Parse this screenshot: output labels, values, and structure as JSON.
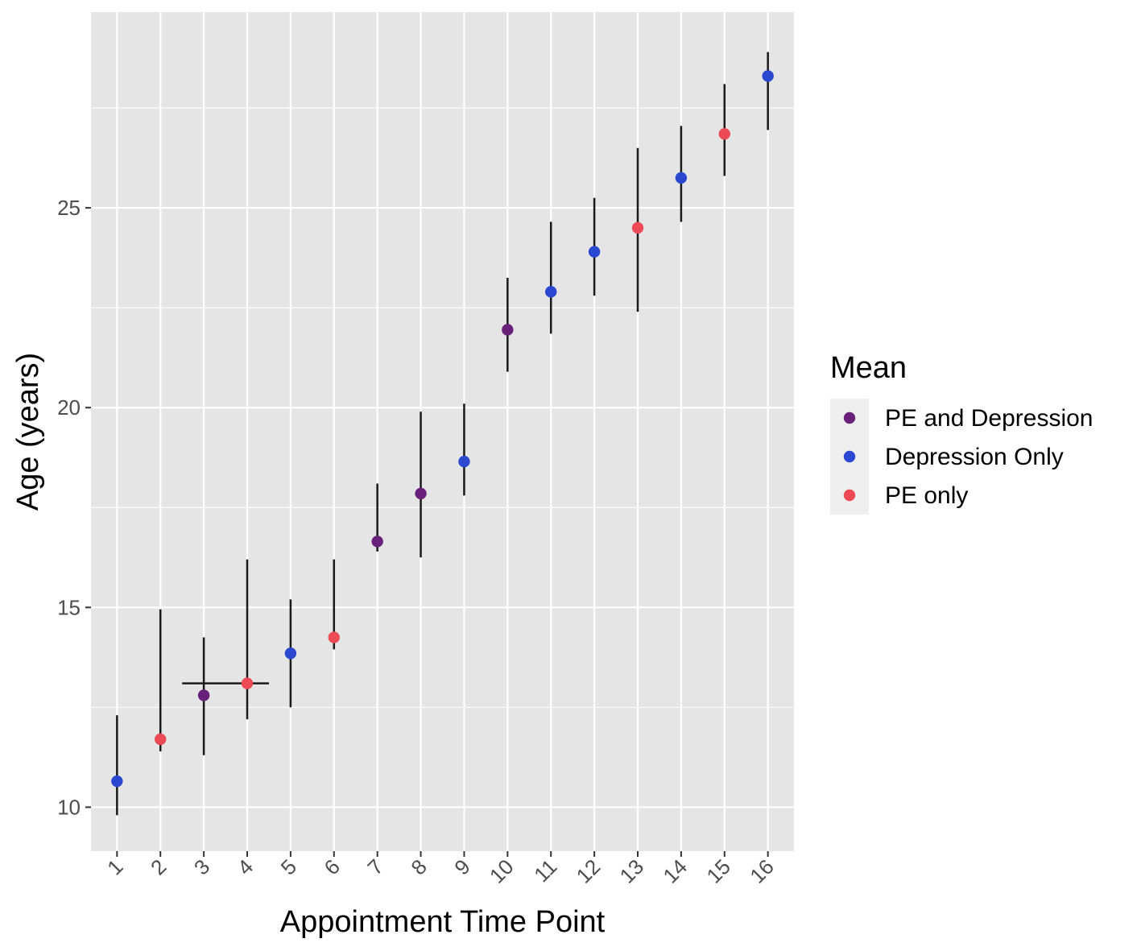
{
  "chart_data": {
    "type": "scatter",
    "title": "",
    "xlabel": "Appointment Time Point",
    "ylabel": "Age (years)",
    "categories": [
      "1",
      "2",
      "3",
      "4",
      "5",
      "6",
      "7",
      "8",
      "9",
      "10",
      "11",
      "12",
      "13",
      "14",
      "15",
      "16"
    ],
    "ylim": [
      8.9,
      29.9
    ],
    "yticks": [
      10,
      15,
      20,
      25
    ],
    "grid": true,
    "legend": {
      "title": "Mean",
      "position": "right",
      "entries": [
        {
          "label": "PE and Depression",
          "color": "#68207a"
        },
        {
          "label": "Depression Only",
          "color": "#2b48d0"
        },
        {
          "label": "PE only",
          "color": "#ec4a55"
        }
      ]
    },
    "points": [
      {
        "x": "1",
        "mean": 10.65,
        "low": 9.8,
        "high": 12.3,
        "group": "Depression Only"
      },
      {
        "x": "2",
        "mean": 11.7,
        "low": 11.4,
        "high": 14.95,
        "group": "PE only"
      },
      {
        "x": "3",
        "mean": 12.8,
        "low": 11.3,
        "high": 14.25,
        "group": "PE and Depression"
      },
      {
        "x": "4",
        "mean": 13.1,
        "low": 12.2,
        "high": 16.2,
        "group": "PE only",
        "hbar": [
          2.5,
          4.5
        ]
      },
      {
        "x": "5",
        "mean": 13.85,
        "low": 12.5,
        "high": 15.2,
        "group": "Depression Only"
      },
      {
        "x": "6",
        "mean": 14.25,
        "low": 13.95,
        "high": 16.2,
        "group": "PE only"
      },
      {
        "x": "7",
        "mean": 16.65,
        "low": 16.4,
        "high": 18.1,
        "group": "PE and Depression"
      },
      {
        "x": "8",
        "mean": 17.85,
        "low": 16.25,
        "high": 19.9,
        "group": "PE and Depression"
      },
      {
        "x": "9",
        "mean": 18.65,
        "low": 17.8,
        "high": 20.1,
        "group": "Depression Only"
      },
      {
        "x": "10",
        "mean": 21.95,
        "low": 20.9,
        "high": 23.25,
        "group": "PE and Depression"
      },
      {
        "x": "11",
        "mean": 22.9,
        "low": 21.85,
        "high": 24.65,
        "group": "Depression Only"
      },
      {
        "x": "12",
        "mean": 23.9,
        "low": 22.8,
        "high": 25.25,
        "group": "Depression Only"
      },
      {
        "x": "13",
        "mean": 24.5,
        "low": 22.4,
        "high": 26.5,
        "group": "PE only"
      },
      {
        "x": "14",
        "mean": 25.75,
        "low": 24.65,
        "high": 27.05,
        "group": "Depression Only"
      },
      {
        "x": "15",
        "mean": 26.85,
        "low": 25.8,
        "high": 28.1,
        "group": "PE only"
      },
      {
        "x": "16",
        "mean": 28.3,
        "low": 26.95,
        "high": 28.9,
        "group": "Depression Only"
      }
    ],
    "colors": {
      "panel": "#e5e5e5",
      "grid": "#ffffff",
      "errorbar": "#1a1a1a",
      "legend_key_bg": "#efefef"
    }
  }
}
